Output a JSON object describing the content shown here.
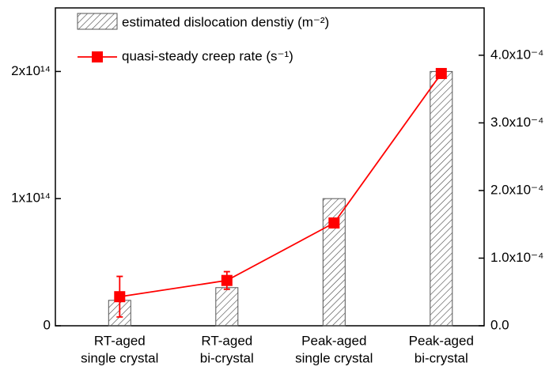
{
  "chart_data": {
    "type": "bar-line",
    "categories": [
      [
        "RT-aged",
        "single crystal"
      ],
      [
        "RT-aged",
        "bi-crystal"
      ],
      [
        "Peak-aged",
        "single crystal"
      ],
      [
        "Peak-aged",
        "bi-crystal"
      ]
    ],
    "series": [
      {
        "name": "estimated dislocation denstiy (m⁻²)",
        "type": "bar",
        "color": "#555555",
        "axis": "y",
        "values": [
          20000000000000.0,
          30000000000000.0,
          100000000000000.0,
          200000000000000.0
        ]
      },
      {
        "name": "quasi-steady creep rate (s⁻¹)",
        "type": "line",
        "color": "#ff0000",
        "axis": "y2",
        "values": [
          4.3e-05,
          6.7e-05,
          0.000152,
          0.000373
        ],
        "errors": [
          3e-05,
          1.3e-05,
          5e-06,
          6e-06
        ]
      }
    ],
    "ylim": [
      0,
      250000000000000.0
    ],
    "yticks": [
      0,
      {
        "value": 100000000000000.0,
        "label": "1x10¹⁴"
      },
      {
        "value": 200000000000000.0,
        "label": "2x10¹⁴"
      }
    ],
    "y2lim": [
      0,
      0.00047
    ],
    "y2ticks": [
      {
        "value": 0,
        "label": "0.0"
      },
      {
        "value": 0.0001,
        "label": "1.0x10⁻⁴"
      },
      {
        "value": 0.0002,
        "label": "2.0x10⁻⁴"
      },
      {
        "value": 0.0003,
        "label": "3.0x10⁻⁴"
      },
      {
        "value": 0.0004,
        "label": "4.0x10⁻⁴"
      }
    ],
    "legend": "upper-left"
  }
}
